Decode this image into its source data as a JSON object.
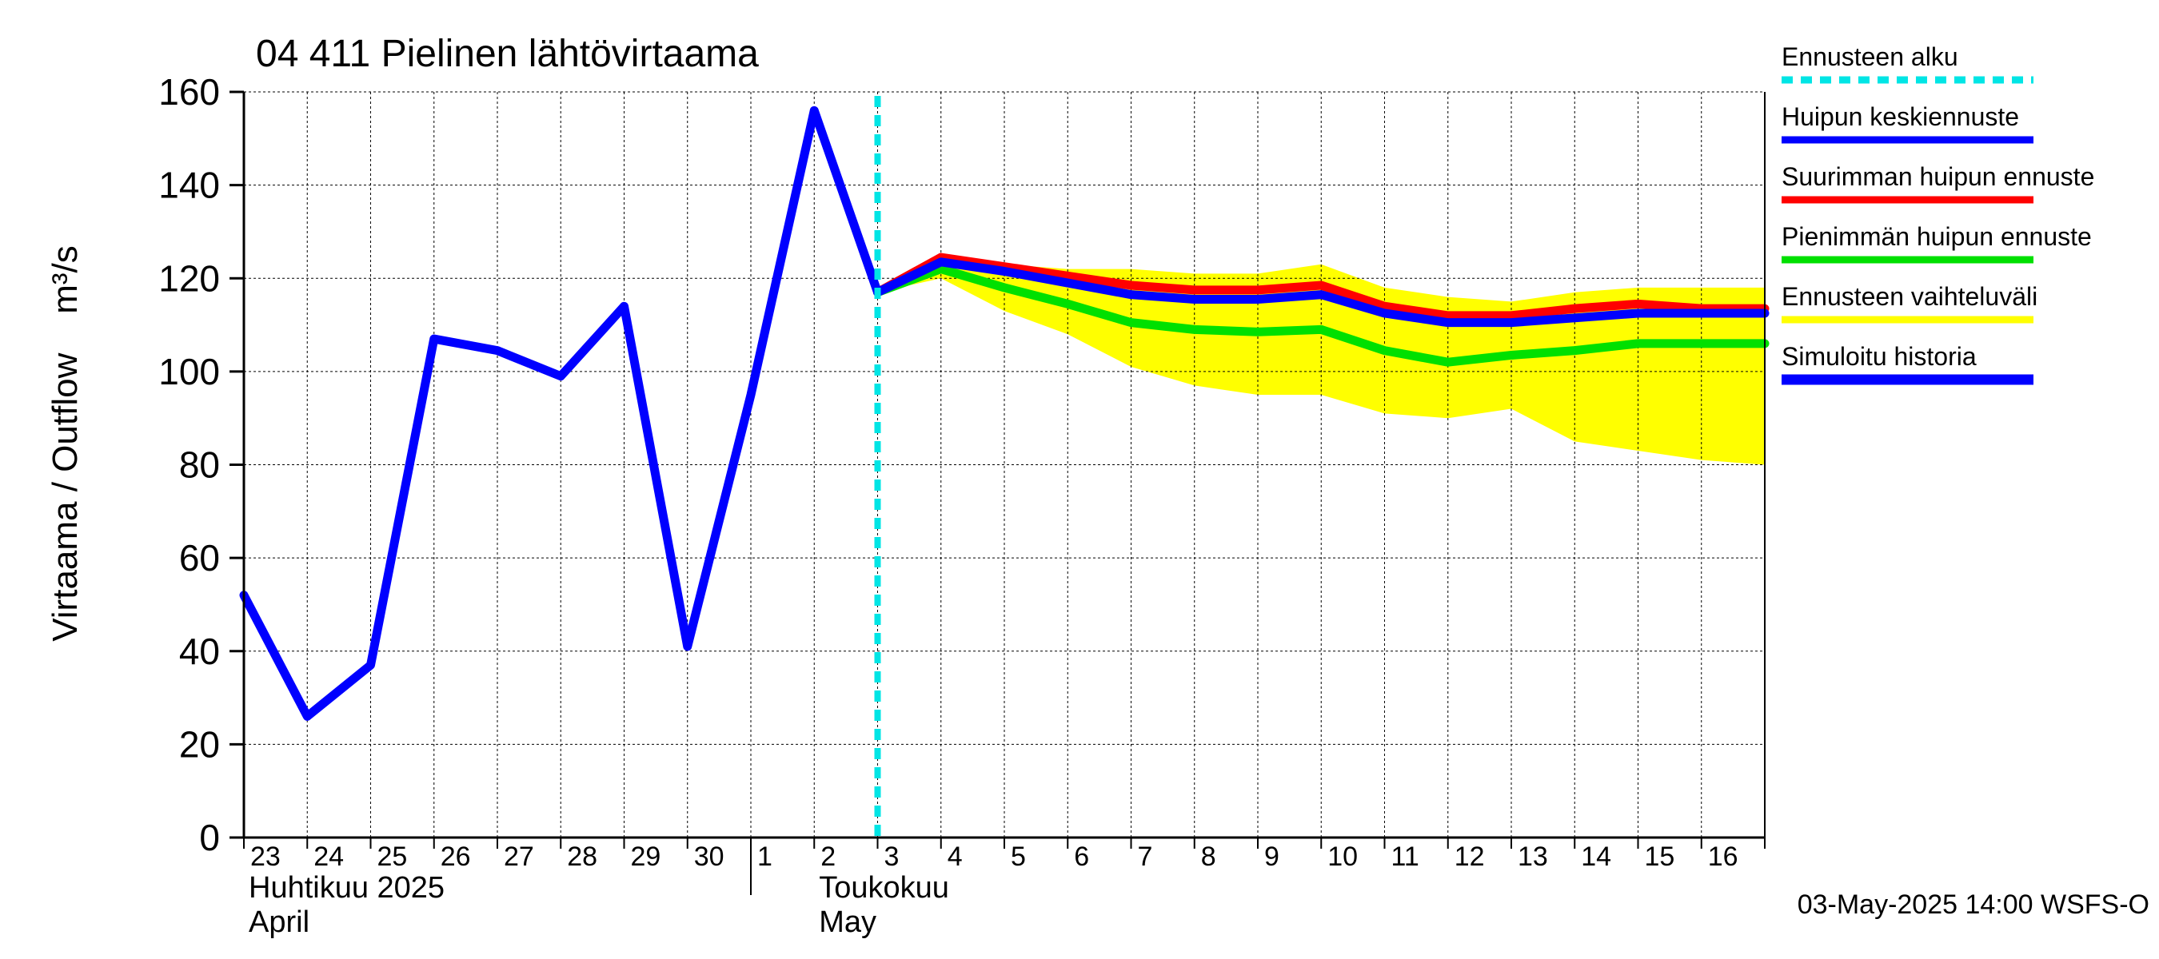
{
  "chart_data": {
    "type": "line",
    "title": "04 411 Pielinen lähtövirtaama",
    "ylabel": "Virtaama / Outflow    m³/s",
    "ylim": [
      0,
      160
    ],
    "yticks": [
      0,
      20,
      40,
      60,
      80,
      100,
      120,
      140,
      160
    ],
    "x_day_range": [
      23,
      47
    ],
    "grid": true,
    "x_tick_labels": [
      {
        "day": 23,
        "label": "23"
      },
      {
        "day": 24,
        "label": "24"
      },
      {
        "day": 25,
        "label": "25"
      },
      {
        "day": 26,
        "label": "26"
      },
      {
        "day": 27,
        "label": "27"
      },
      {
        "day": 28,
        "label": "28"
      },
      {
        "day": 29,
        "label": "29"
      },
      {
        "day": 30,
        "label": "30"
      },
      {
        "day": 31,
        "label": "1"
      },
      {
        "day": 32,
        "label": "2"
      },
      {
        "day": 33,
        "label": "3"
      },
      {
        "day": 34,
        "label": "4"
      },
      {
        "day": 35,
        "label": "5"
      },
      {
        "day": 36,
        "label": "6"
      },
      {
        "day": 37,
        "label": "7"
      },
      {
        "day": 38,
        "label": "8"
      },
      {
        "day": 39,
        "label": "9"
      },
      {
        "day": 40,
        "label": "10"
      },
      {
        "day": 41,
        "label": "11"
      },
      {
        "day": 42,
        "label": "12"
      },
      {
        "day": 43,
        "label": "13"
      },
      {
        "day": 44,
        "label": "14"
      },
      {
        "day": 45,
        "label": "15"
      },
      {
        "day": 46,
        "label": "16"
      }
    ],
    "month_labels": [
      {
        "day": 23,
        "line1": "Huhtikuu  2025",
        "line2": "April"
      },
      {
        "day": 32,
        "line1": "Toukokuu",
        "line2": "May"
      }
    ],
    "month_divider_day": 31,
    "forecast_start_day": 33,
    "legend_position": "right",
    "legend": [
      {
        "label": "Ennusteen alku",
        "color": "#00e5e5",
        "style": "dashed"
      },
      {
        "label": "Huipun keskiennuste",
        "color": "#0000ff",
        "style": "solid"
      },
      {
        "label": "Suurimman huipun ennuste",
        "color": "#ff0000",
        "style": "solid"
      },
      {
        "label": "Pienimmän huipun ennuste",
        "color": "#00e000",
        "style": "solid"
      },
      {
        "label": "Ennusteen vaihteluväli",
        "color": "#ffff00",
        "style": "solid"
      },
      {
        "label": "Simuloitu historia",
        "color": "#0000ff",
        "style": "solid"
      }
    ],
    "range_band": {
      "name": "Ennusteen vaihteluväli",
      "color": "#ffff00",
      "x": [
        33,
        34,
        35,
        36,
        37,
        38,
        39,
        40,
        41,
        42,
        43,
        44,
        45,
        46,
        47
      ],
      "upper": [
        118,
        125,
        123,
        122,
        122,
        121,
        121,
        123,
        118,
        116,
        115,
        117,
        118,
        118,
        118
      ],
      "lower": [
        117,
        120,
        113,
        108,
        101,
        97,
        95,
        95,
        91,
        90,
        92,
        85,
        83,
        81,
        80
      ]
    },
    "series": [
      {
        "name": "Simuloitu historia",
        "color": "#0000ff",
        "x": [
          23,
          24,
          25,
          26,
          27,
          28,
          29,
          30,
          31,
          32,
          33
        ],
        "y": [
          52,
          26,
          37,
          107,
          104.5,
          99,
          114,
          41,
          95,
          156,
          117
        ]
      },
      {
        "name": "Suurimman huipun ennuste",
        "color": "#ff0000",
        "x": [
          33,
          34,
          35,
          36,
          37,
          38,
          39,
          40,
          41,
          42,
          43,
          44,
          45,
          46,
          47
        ],
        "y": [
          117,
          124.5,
          122.5,
          120.5,
          118.5,
          117.5,
          117.5,
          118.5,
          114,
          112,
          112,
          113.5,
          114.5,
          113.5,
          113.5
        ]
      },
      {
        "name": "Pienimmän huipun ennuste",
        "color": "#00e000",
        "x": [
          33,
          34,
          35,
          36,
          37,
          38,
          39,
          40,
          41,
          42,
          43,
          44,
          45,
          46,
          47
        ],
        "y": [
          117,
          122,
          118,
          114.5,
          110.5,
          109,
          108.5,
          109,
          104.5,
          102,
          103.5,
          104.5,
          106,
          106,
          106
        ]
      },
      {
        "name": "Huipun keskiennuste",
        "color": "#0000ff",
        "x": [
          33,
          34,
          35,
          36,
          37,
          38,
          39,
          40,
          41,
          42,
          43,
          44,
          45,
          46,
          47
        ],
        "y": [
          117,
          123.5,
          121.5,
          119,
          116.5,
          115.5,
          115.5,
          116.5,
          112.5,
          110.5,
          110.5,
          111.5,
          112.5,
          112.5,
          112.5
        ]
      }
    ],
    "footer": "03-May-2025 14:00 WSFS-O"
  }
}
